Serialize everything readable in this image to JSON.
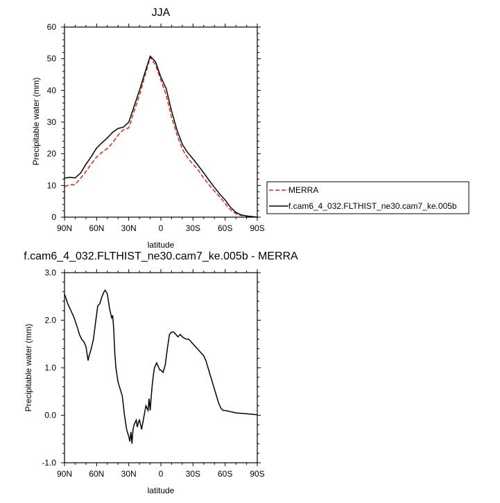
{
  "chart_data": [
    {
      "type": "line",
      "title": "JJA",
      "xlabel": "latitude",
      "ylabel": "Precipitable water (mm)",
      "xlim": [
        -90,
        90
      ],
      "ylim": [
        0,
        60
      ],
      "x_tick_values": [
        -90,
        -60,
        -30,
        0,
        30,
        60,
        90
      ],
      "x_tick_labels": [
        "90N",
        "60N",
        "30N",
        "0",
        "30S",
        "60S",
        "90S"
      ],
      "y_tick_values": [
        0,
        10,
        20,
        30,
        40,
        50,
        60
      ],
      "y_tick_labels": [
        "0",
        "10",
        "20",
        "30",
        "40",
        "50",
        "60"
      ],
      "legend": {
        "placement": "right",
        "entries": [
          "MERRA",
          "f.cam6_4_032.FLTHIST_ne30.cam7_ke.005b"
        ]
      },
      "series": [
        {
          "name": "MERRA",
          "color": "#e0201b",
          "dash": "dashed",
          "x": [
            -90,
            -85,
            -80,
            -75,
            -70,
            -65,
            -60,
            -55,
            -50,
            -45,
            -40,
            -35,
            -30,
            -25,
            -20,
            -15,
            -10,
            -5,
            0,
            5,
            10,
            15,
            20,
            25,
            30,
            35,
            40,
            45,
            50,
            55,
            60,
            65,
            70,
            75,
            80,
            85,
            90
          ],
          "y": [
            9.7,
            10.2,
            10.3,
            12.3,
            14.4,
            16.8,
            19.0,
            20.5,
            21.7,
            23.5,
            25.9,
            27.6,
            28.2,
            33.5,
            38.5,
            44.5,
            50.5,
            48.0,
            43.2,
            38.5,
            31.5,
            26.0,
            21.5,
            18.7,
            16.7,
            14.8,
            12.3,
            10.2,
            8.2,
            6.4,
            4.3,
            2.3,
            1.1,
            0.5,
            0.3,
            0.1,
            0.0
          ]
        },
        {
          "name": "f.cam6_4_032.FLTHIST_ne30.cam7_ke.005b",
          "color": "#000000",
          "dash": "solid",
          "x": [
            -90,
            -85,
            -80,
            -75,
            -70,
            -65,
            -60,
            -55,
            -50,
            -45,
            -40,
            -35,
            -30,
            -25,
            -20,
            -15,
            -10,
            -5,
            0,
            5,
            10,
            15,
            20,
            25,
            30,
            35,
            40,
            45,
            50,
            55,
            60,
            65,
            70,
            75,
            80,
            85,
            90
          ],
          "y": [
            12.3,
            12.6,
            12.4,
            13.9,
            16.7,
            19.1,
            21.8,
            23.5,
            25.0,
            26.8,
            28.0,
            28.4,
            30.0,
            35.0,
            40.0,
            45.5,
            50.8,
            49.0,
            44.2,
            40.5,
            33.5,
            27.5,
            23.0,
            20.4,
            18.4,
            16.2,
            14.0,
            11.6,
            9.4,
            7.3,
            5.4,
            3.1,
            1.5,
            0.7,
            0.4,
            0.2,
            0.0
          ]
        }
      ]
    },
    {
      "type": "line",
      "title": "f.cam6_4_032.FLTHIST_ne30.cam7_ke.005b - MERRA",
      "xlabel": "latitude",
      "ylabel": "Precipitable water (mm)",
      "xlim": [
        -90,
        90
      ],
      "ylim": [
        -1.0,
        3.0
      ],
      "x_tick_values": [
        -90,
        -60,
        -30,
        0,
        30,
        60,
        90
      ],
      "x_tick_labels": [
        "90N",
        "60N",
        "30N",
        "0",
        "30S",
        "60S",
        "90S"
      ],
      "y_tick_values": [
        -1.0,
        0.0,
        1.0,
        2.0,
        3.0
      ],
      "y_tick_labels": [
        "-1.0",
        "0.0",
        "1.0",
        "2.0",
        "3.0"
      ],
      "series": [
        {
          "name": "f.cam6_4_032.FLTHIST_ne30.cam7_ke.005b - MERRA",
          "color": "#000000",
          "dash": "solid",
          "x": [
            -90,
            -87,
            -84,
            -81,
            -78,
            -76,
            -74,
            -72,
            -70,
            -68,
            -67,
            -65,
            -63,
            -61,
            -59,
            -57,
            -55,
            -53,
            -52,
            -50,
            -48,
            -46,
            -45,
            -44,
            -43,
            -42,
            -40,
            -38,
            -36,
            -34,
            -32,
            -30,
            -29,
            -28,
            -27,
            -26,
            -25,
            -24,
            -23,
            -22,
            -21,
            -20,
            -19,
            -18,
            -16,
            -14,
            -12,
            -11,
            -10,
            -9,
            -8,
            -7,
            -6,
            -5,
            -4,
            -3,
            -2,
            -1,
            0,
            2,
            4,
            6,
            8,
            10,
            12,
            14,
            16,
            18,
            20,
            22,
            24,
            26,
            28,
            30,
            32,
            34,
            36,
            38,
            40,
            42,
            44,
            46,
            48,
            50,
            52,
            54,
            56,
            58,
            60,
            62,
            64,
            66,
            68,
            70,
            75,
            80,
            85,
            90
          ],
          "y": [
            2.55,
            2.35,
            2.2,
            2.05,
            1.85,
            1.7,
            1.6,
            1.55,
            1.45,
            1.15,
            1.25,
            1.4,
            1.6,
            1.95,
            2.3,
            2.35,
            2.5,
            2.6,
            2.63,
            2.55,
            2.25,
            2.05,
            2.1,
            1.8,
            1.3,
            1.0,
            0.7,
            0.55,
            0.4,
            0.0,
            -0.3,
            -0.45,
            -0.55,
            -0.35,
            -0.6,
            -0.3,
            -0.2,
            -0.15,
            -0.1,
            -0.25,
            -0.15,
            -0.1,
            -0.2,
            -0.3,
            -0.05,
            0.2,
            0.1,
            0.35,
            0.1,
            0.4,
            0.65,
            0.85,
            1.0,
            1.05,
            1.1,
            1.05,
            1.0,
            0.95,
            0.95,
            0.9,
            1.05,
            1.4,
            1.7,
            1.75,
            1.75,
            1.7,
            1.65,
            1.7,
            1.65,
            1.62,
            1.6,
            1.6,
            1.55,
            1.5,
            1.45,
            1.4,
            1.35,
            1.3,
            1.25,
            1.15,
            1.0,
            0.85,
            0.7,
            0.55,
            0.4,
            0.25,
            0.15,
            0.1,
            0.1,
            0.09,
            0.08,
            0.07,
            0.06,
            0.05,
            0.04,
            0.03,
            0.02,
            0.01
          ]
        }
      ]
    }
  ]
}
